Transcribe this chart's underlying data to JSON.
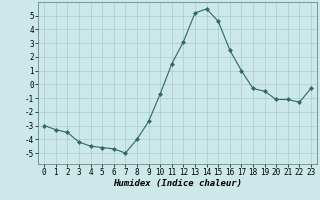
{
  "x": [
    0,
    1,
    2,
    3,
    4,
    5,
    6,
    7,
    8,
    9,
    10,
    11,
    12,
    13,
    14,
    15,
    16,
    17,
    18,
    19,
    20,
    21,
    22,
    23
  ],
  "y": [
    -3.0,
    -3.3,
    -3.5,
    -4.2,
    -4.5,
    -4.6,
    -4.7,
    -5.0,
    -4.0,
    -2.7,
    -0.7,
    1.5,
    3.1,
    5.2,
    5.5,
    4.6,
    2.5,
    1.0,
    -0.3,
    -0.5,
    -1.1,
    -1.1,
    -1.3,
    -0.3
  ],
  "line_color": "#2e6b5e",
  "marker": "D",
  "marker_size": 2.0,
  "background_color": "#cce8e8",
  "grid_color": "#aacccc",
  "xlabel": "Humidex (Indice chaleur)",
  "ylim": [
    -5.8,
    6.0
  ],
  "yticks": [
    -5,
    -4,
    -3,
    -2,
    -1,
    0,
    1,
    2,
    3,
    4,
    5
  ],
  "xticks": [
    0,
    1,
    2,
    3,
    4,
    5,
    6,
    7,
    8,
    9,
    10,
    11,
    12,
    13,
    14,
    15,
    16,
    17,
    18,
    19,
    20,
    21,
    22,
    23
  ],
  "tick_fontsize": 5.5,
  "xlabel_fontsize": 6.5,
  "xlim": [
    -0.5,
    23.5
  ]
}
